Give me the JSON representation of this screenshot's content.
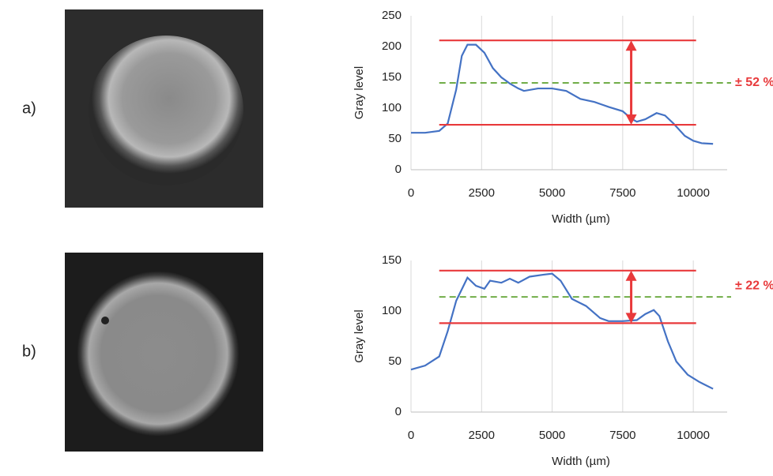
{
  "panel_labels": [
    "a)",
    "b)"
  ],
  "chart_data": [
    {
      "type": "line",
      "xlabel": "Width (µm)",
      "ylabel": "Gray level",
      "x": [
        0,
        500,
        1000,
        1300,
        1600,
        1800,
        2000,
        2300,
        2600,
        2900,
        3200,
        3500,
        3800,
        4000,
        4500,
        5000,
        5500,
        6000,
        6500,
        7000,
        7500,
        7800,
        8000,
        8300,
        8700,
        9000,
        9300,
        9700,
        10000,
        10300,
        10700
      ],
      "series": [
        {
          "color": "#4472c4",
          "values": [
            60,
            60,
            63,
            75,
            130,
            185,
            203,
            203,
            190,
            165,
            150,
            140,
            132,
            128,
            132,
            132,
            128,
            115,
            110,
            102,
            95,
            83,
            78,
            82,
            92,
            88,
            75,
            55,
            47,
            43,
            42
          ]
        }
      ],
      "max_line": 210,
      "min_line": 73,
      "mean_line": 141,
      "line_start": 1000,
      "line_end": 10100,
      "arrow_x": 7800,
      "line_color": "#e8393b",
      "mean_color": "#70ad47",
      "annotation": "± 52 %",
      "xlim": [
        0,
        11200
      ],
      "xticks": [
        0,
        2500,
        5000,
        7500,
        10000
      ],
      "ylim": [
        0,
        250
      ],
      "yticks": [
        0,
        50,
        100,
        150,
        200,
        250
      ],
      "grid": true
    },
    {
      "type": "line",
      "xlabel": "Width (µm)",
      "ylabel": "Gray level",
      "x": [
        0,
        500,
        1000,
        1300,
        1600,
        2000,
        2300,
        2600,
        2800,
        3200,
        3500,
        3800,
        4200,
        4700,
        5000,
        5300,
        5700,
        6200,
        6700,
        7000,
        7500,
        8000,
        8300,
        8600,
        8800,
        9100,
        9400,
        9800,
        10200,
        10700
      ],
      "series": [
        {
          "color": "#4472c4",
          "values": [
            42,
            46,
            55,
            80,
            110,
            133,
            125,
            122,
            130,
            128,
            132,
            128,
            134,
            136,
            137,
            130,
            112,
            105,
            93,
            90,
            90,
            91,
            97,
            101,
            95,
            70,
            50,
            37,
            30,
            23
          ]
        }
      ],
      "max_line": 140,
      "min_line": 88,
      "mean_line": 114,
      "line_start": 1000,
      "line_end": 10100,
      "arrow_x": 7800,
      "line_color": "#e8393b",
      "mean_color": "#70ad47",
      "annotation": "± 22 %",
      "xlim": [
        0,
        11200
      ],
      "xticks": [
        0,
        2500,
        5000,
        7500,
        10000
      ],
      "ylim": [
        0,
        150
      ],
      "yticks": [
        0,
        50,
        100,
        150
      ],
      "grid": true
    }
  ]
}
